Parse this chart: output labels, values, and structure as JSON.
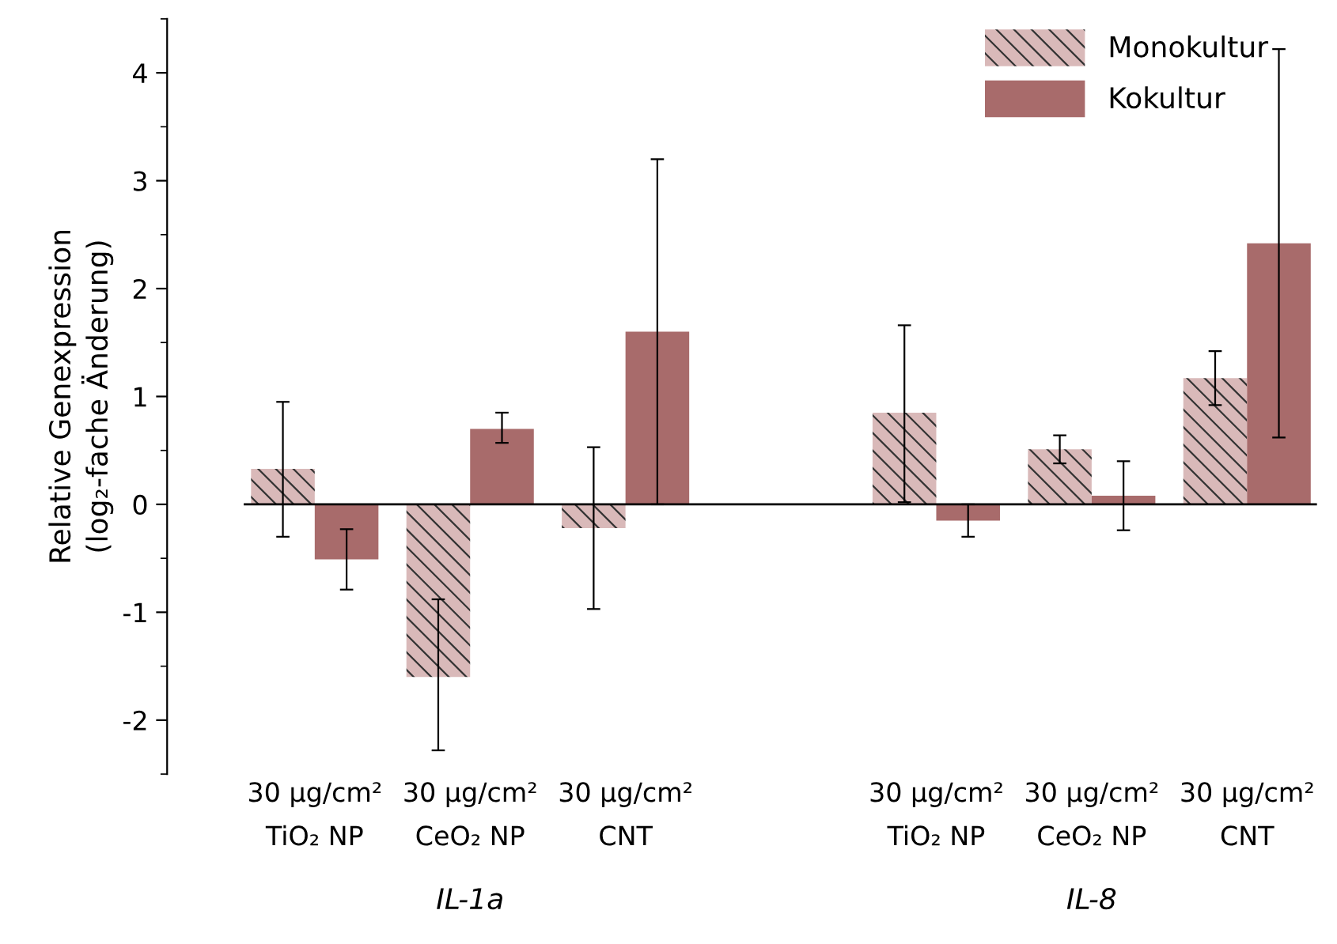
{
  "chart_data": {
    "type": "bar",
    "ylabel": "Relative Genexpression\n(log₂-fache Änderung)",
    "categories": [
      "30 µg/cm²\nTiO₂ NP",
      "30 µg/cm²\nCeO₂ NP",
      "30 µg/cm²\nCNT",
      null,
      "30 µg/cm²\nTiO₂ NP",
      "30 µg/cm²\nCeO₂ NP",
      "30 µg/cm²\nCNT"
    ],
    "series": [
      {
        "name": "Monokultur",
        "color": "#d9b9b9",
        "values": [
          0.33,
          -1.6,
          -0.22,
          null,
          0.85,
          0.51,
          1.17
        ],
        "errors": [
          [
            -0.3,
            0.95
          ],
          [
            -2.28,
            -0.88
          ],
          [
            -0.97,
            0.53
          ],
          null,
          [
            0.02,
            1.66
          ],
          [
            0.38,
            0.64
          ],
          [
            0.92,
            1.42
          ]
        ]
      },
      {
        "name": "Kokultur",
        "color": "#a86b6b",
        "values": [
          -0.51,
          0.7,
          1.6,
          null,
          -0.15,
          0.08,
          2.42
        ],
        "errors": [
          [
            -0.79,
            -0.23
          ],
          [
            0.57,
            0.85
          ],
          [
            0.0,
            3.2
          ],
          null,
          [
            -0.3,
            0.0
          ],
          [
            -0.24,
            0.4
          ],
          [
            0.62,
            4.22
          ]
        ]
      }
    ],
    "ylim": [
      -2.5,
      4.5
    ],
    "yticks": [
      -2,
      -1,
      0,
      1,
      2,
      3,
      4
    ],
    "annotations": [
      "IL-1a",
      "IL-8"
    ],
    "ref_lines": [
      {
        "axis": "y",
        "value": 0,
        "color": "#000000"
      }
    ],
    "legend": "top right",
    "grid": false
  }
}
